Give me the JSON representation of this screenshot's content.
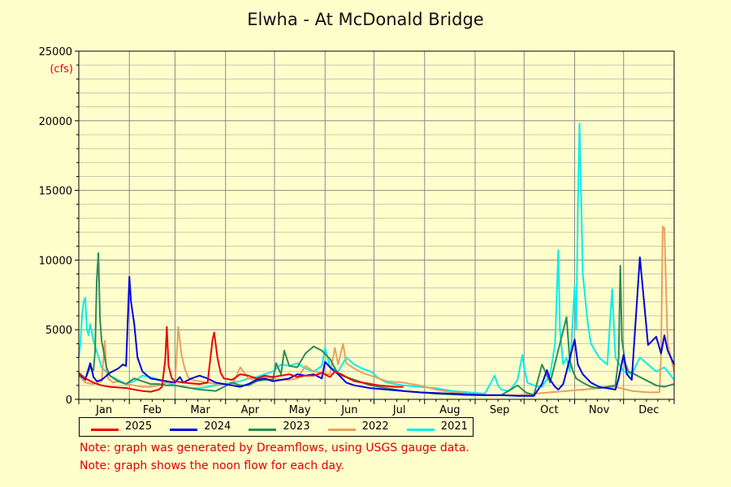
{
  "title": "Elwha - At McDonald Bridge",
  "notes": [
    "Note: graph was generated by Dreamflows, using USGS gauge data.",
    "Note: graph shows the noon flow for each day."
  ],
  "chart_data": {
    "type": "line",
    "title": "Elwha - At McDonald Bridge",
    "ylabel": "(cfs)",
    "xlabel": "",
    "ylim": [
      0,
      25000
    ],
    "yticks": [
      0,
      5000,
      10000,
      15000,
      20000,
      25000
    ],
    "xlim": [
      1,
      366
    ],
    "months": [
      "Jan",
      "Feb",
      "Mar",
      "Apr",
      "May",
      "Jun",
      "Jul",
      "Aug",
      "Sep",
      "Oct",
      "Nov",
      "Dec"
    ],
    "month_starts": [
      1,
      32,
      60,
      91,
      121,
      152,
      182,
      213,
      244,
      274,
      305,
      335
    ],
    "grid": true,
    "legend_position": "bottom",
    "series": [
      {
        "name": "2025",
        "color": "#ee0000",
        "x": [
          1,
          5,
          10,
          15,
          20,
          25,
          31,
          35,
          40,
          45,
          50,
          52,
          54,
          55,
          56,
          58,
          60,
          65,
          70,
          75,
          80,
          83,
          84,
          86,
          88,
          90,
          95,
          100,
          105,
          110,
          115,
          120,
          125,
          130,
          135,
          140,
          145,
          150,
          155,
          158,
          160,
          162,
          165,
          170,
          175,
          180,
          185,
          190,
          195,
          200
        ],
        "y": [
          1900,
          1500,
          1200,
          1000,
          900,
          850,
          800,
          700,
          600,
          550,
          700,
          900,
          2800,
          5200,
          2400,
          1500,
          1300,
          1200,
          1150,
          1100,
          1200,
          4300,
          4800,
          3000,
          1900,
          1500,
          1400,
          1800,
          1700,
          1500,
          1700,
          1600,
          1700,
          1800,
          1600,
          1700,
          1700,
          1900,
          1600,
          2000,
          1900,
          1800,
          1600,
          1300,
          1200,
          1100,
          1000,
          950,
          900,
          900
        ]
      },
      {
        "name": "2024",
        "color": "#0000dd",
        "x": [
          1,
          5,
          8,
          10,
          12,
          15,
          20,
          25,
          28,
          30,
          32,
          33,
          34,
          35,
          36,
          37,
          40,
          45,
          50,
          55,
          60,
          63,
          65,
          70,
          75,
          80,
          85,
          90,
          95,
          100,
          105,
          110,
          115,
          120,
          125,
          130,
          135,
          140,
          145,
          150,
          152,
          155,
          158,
          160,
          165,
          170,
          180,
          190,
          200,
          210,
          220,
          230,
          240,
          250,
          260,
          270,
          280,
          285,
          288,
          290,
          293,
          295,
          298,
          300,
          303,
          305,
          307,
          310,
          315,
          320,
          325,
          330,
          332,
          335,
          337,
          340,
          345,
          350,
          355,
          358,
          360,
          362,
          364,
          366
        ],
        "y": [
          1900,
          1400,
          2600,
          1600,
          1300,
          1400,
          1900,
          2200,
          2500,
          2400,
          8800,
          7000,
          6200,
          5400,
          4200,
          3000,
          2000,
          1500,
          1400,
          1300,
          1200,
          1600,
          1200,
          1500,
          1700,
          1500,
          1200,
          1100,
          1000,
          900,
          1100,
          1400,
          1500,
          1300,
          1400,
          1500,
          1800,
          1700,
          1800,
          1500,
          2700,
          2300,
          2000,
          1800,
          1200,
          1000,
          800,
          700,
          600,
          500,
          450,
          400,
          350,
          300,
          300,
          250,
          250,
          1100,
          2100,
          1400,
          900,
          700,
          1100,
          2000,
          3400,
          4300,
          2500,
          1800,
          1200,
          900,
          800,
          700,
          1500,
          3200,
          1800,
          1400,
          10200,
          3900,
          4500,
          3300,
          4600,
          3500,
          3000,
          2500
        ]
      },
      {
        "name": "2023",
        "color": "#2e8b57",
        "x": [
          1,
          5,
          8,
          10,
          11,
          12,
          13,
          14,
          15,
          16,
          18,
          20,
          25,
          30,
          35,
          40,
          45,
          50,
          55,
          60,
          65,
          70,
          75,
          80,
          85,
          90,
          95,
          100,
          105,
          110,
          115,
          120,
          122,
          125,
          127,
          130,
          135,
          140,
          145,
          150,
          155,
          160,
          170,
          180,
          190,
          200,
          210,
          220,
          230,
          240,
          250,
          260,
          270,
          275,
          280,
          285,
          290,
          300,
          302,
          304,
          306,
          310,
          315,
          320,
          325,
          330,
          332,
          333,
          334,
          336,
          338,
          340,
          345,
          350,
          355,
          360,
          366
        ],
        "y": [
          1700,
          1500,
          2300,
          2100,
          3500,
          8500,
          10500,
          5800,
          4200,
          3600,
          2300,
          1700,
          1300,
          1100,
          1500,
          1300,
          1100,
          1100,
          1000,
          1000,
          900,
          800,
          700,
          650,
          600,
          900,
          1200,
          1000,
          1000,
          1300,
          1400,
          1400,
          2600,
          1800,
          3500,
          2400,
          2300,
          3300,
          3800,
          3500,
          2900,
          1800,
          1400,
          1000,
          800,
          600,
          500,
          400,
          350,
          300,
          300,
          300,
          1000,
          500,
          300,
          2500,
          1200,
          5900,
          2800,
          2000,
          1500,
          1200,
          900,
          800,
          900,
          1000,
          3000,
          9600,
          4300,
          2600,
          2000,
          1900,
          1600,
          1300,
          1000,
          900,
          1100
        ]
      },
      {
        "name": "2022",
        "color": "#e8a060",
        "x": [
          1,
          5,
          10,
          15,
          17,
          18,
          19,
          20,
          21,
          22,
          25,
          30,
          35,
          40,
          45,
          50,
          55,
          60,
          62,
          64,
          66,
          68,
          70,
          75,
          80,
          85,
          90,
          95,
          100,
          105,
          110,
          115,
          120,
          125,
          130,
          135,
          140,
          145,
          150,
          155,
          158,
          160,
          163,
          165,
          170,
          175,
          180,
          190,
          200,
          210,
          220,
          230,
          240,
          250,
          260,
          270,
          280,
          290,
          300,
          310,
          320,
          330,
          340,
          350,
          355,
          357,
          358,
          359,
          360,
          362,
          366
        ],
        "y": [
          1700,
          1200,
          1100,
          1300,
          4200,
          2000,
          1500,
          1400,
          1300,
          1200,
          1300,
          1100,
          1000,
          900,
          900,
          1000,
          1200,
          1200,
          5200,
          3200,
          2200,
          1600,
          1400,
          1300,
          1200,
          1100,
          1100,
          1000,
          2300,
          1500,
          1400,
          1600,
          1500,
          1400,
          1400,
          1500,
          2400,
          2000,
          1900,
          1800,
          3700,
          2500,
          4000,
          2600,
          2200,
          1900,
          1700,
          1300,
          1200,
          1000,
          700,
          500,
          400,
          300,
          300,
          300,
          400,
          500,
          600,
          700,
          800,
          900,
          600,
          500,
          500,
          500,
          3200,
          12400,
          12300,
          4000,
          2000
        ]
      },
      {
        "name": "2021",
        "color": "#00eeee",
        "x": [
          1,
          2,
          3,
          4,
          5,
          6,
          7,
          8,
          10,
          15,
          20,
          25,
          30,
          35,
          40,
          45,
          50,
          55,
          60,
          65,
          70,
          75,
          80,
          85,
          90,
          95,
          100,
          105,
          110,
          115,
          120,
          125,
          130,
          135,
          140,
          145,
          150,
          152,
          155,
          160,
          165,
          170,
          175,
          180,
          185,
          190,
          200,
          210,
          220,
          230,
          240,
          250,
          255,
          256,
          258,
          260,
          265,
          270,
          273,
          274,
          276,
          280,
          285,
          290,
          293,
          295,
          296,
          298,
          300,
          302,
          305,
          306,
          307,
          308,
          310,
          313,
          315,
          320,
          325,
          328,
          330,
          335,
          340,
          345,
          350,
          355,
          360,
          366
        ],
        "y": [
          3000,
          4000,
          6000,
          7000,
          7300,
          5000,
          4600,
          5400,
          4200,
          2300,
          1700,
          1400,
          1100,
          1300,
          1700,
          1600,
          1400,
          1200,
          1000,
          900,
          800,
          800,
          900,
          1000,
          1100,
          1200,
          1300,
          1500,
          1600,
          1800,
          2000,
          2500,
          2400,
          2600,
          2200,
          2000,
          2400,
          3700,
          2300,
          2000,
          3000,
          2500,
          2200,
          2000,
          1500,
          1200,
          1000,
          900,
          800,
          600,
          500,
          400,
          1500,
          1700,
          1000,
          700,
          600,
          1400,
          3200,
          2300,
          1200,
          1000,
          900,
          1800,
          4000,
          10700,
          5000,
          2500,
          3000,
          2000,
          8100,
          5000,
          14000,
          19800,
          9000,
          5500,
          4000,
          3000,
          2500,
          7900,
          3000,
          2000,
          1800,
          3000,
          2500,
          2000,
          2300,
          1400
        ]
      }
    ]
  },
  "legend_labels": [
    "2025",
    "2024",
    "2023",
    "2022",
    "2021"
  ]
}
